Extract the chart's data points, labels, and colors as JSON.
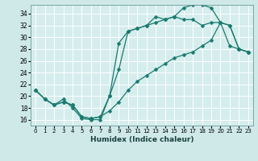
{
  "xlabel": "Humidex (Indice chaleur)",
  "bg_color": "#cfe9e9",
  "plot_bg_color": "#d5eded",
  "line_color": "#1a7a6e",
  "grid_color": "#ffffff",
  "xlim": [
    -0.5,
    23.5
  ],
  "ylim": [
    15,
    35.5
  ],
  "xticks": [
    0,
    1,
    2,
    3,
    4,
    5,
    6,
    7,
    8,
    9,
    10,
    11,
    12,
    13,
    14,
    15,
    16,
    17,
    18,
    19,
    20,
    21,
    22,
    23
  ],
  "yticks": [
    16,
    18,
    20,
    22,
    24,
    26,
    28,
    30,
    32,
    34
  ],
  "line1_x": [
    0,
    1,
    2,
    3,
    4,
    5,
    6,
    7,
    8,
    9,
    10,
    11,
    12,
    13,
    14,
    15,
    16,
    17,
    18,
    19,
    20,
    21,
    22,
    23
  ],
  "line1_y": [
    21.0,
    19.5,
    18.5,
    19.5,
    18.0,
    16.2,
    16.0,
    16.0,
    20.0,
    29.0,
    31.0,
    31.5,
    32.0,
    33.5,
    33.0,
    33.5,
    35.0,
    35.5,
    35.5,
    35.0,
    32.5,
    28.5,
    28.0,
    27.5
  ],
  "line2_x": [
    0,
    1,
    2,
    3,
    4,
    5,
    6,
    7,
    8,
    9,
    10,
    11,
    12,
    13,
    14,
    15,
    16,
    17,
    18,
    19,
    20,
    21,
    22,
    23
  ],
  "line2_y": [
    21.0,
    19.5,
    18.5,
    19.0,
    18.5,
    16.5,
    16.2,
    16.5,
    20.0,
    24.5,
    31.0,
    31.5,
    32.0,
    32.5,
    33.0,
    33.5,
    33.0,
    33.0,
    32.0,
    32.5,
    32.5,
    32.0,
    28.0,
    27.5
  ],
  "line3_x": [
    0,
    1,
    2,
    3,
    4,
    5,
    6,
    7,
    8,
    9,
    10,
    11,
    12,
    13,
    14,
    15,
    16,
    17,
    18,
    19,
    20,
    21,
    22,
    23
  ],
  "line3_y": [
    21.0,
    19.5,
    18.5,
    19.0,
    18.5,
    16.5,
    16.2,
    16.5,
    17.5,
    19.0,
    21.0,
    22.5,
    23.5,
    24.5,
    25.5,
    26.5,
    27.0,
    27.5,
    28.5,
    29.5,
    32.5,
    32.0,
    28.0,
    27.5
  ],
  "markersize": 2.5
}
